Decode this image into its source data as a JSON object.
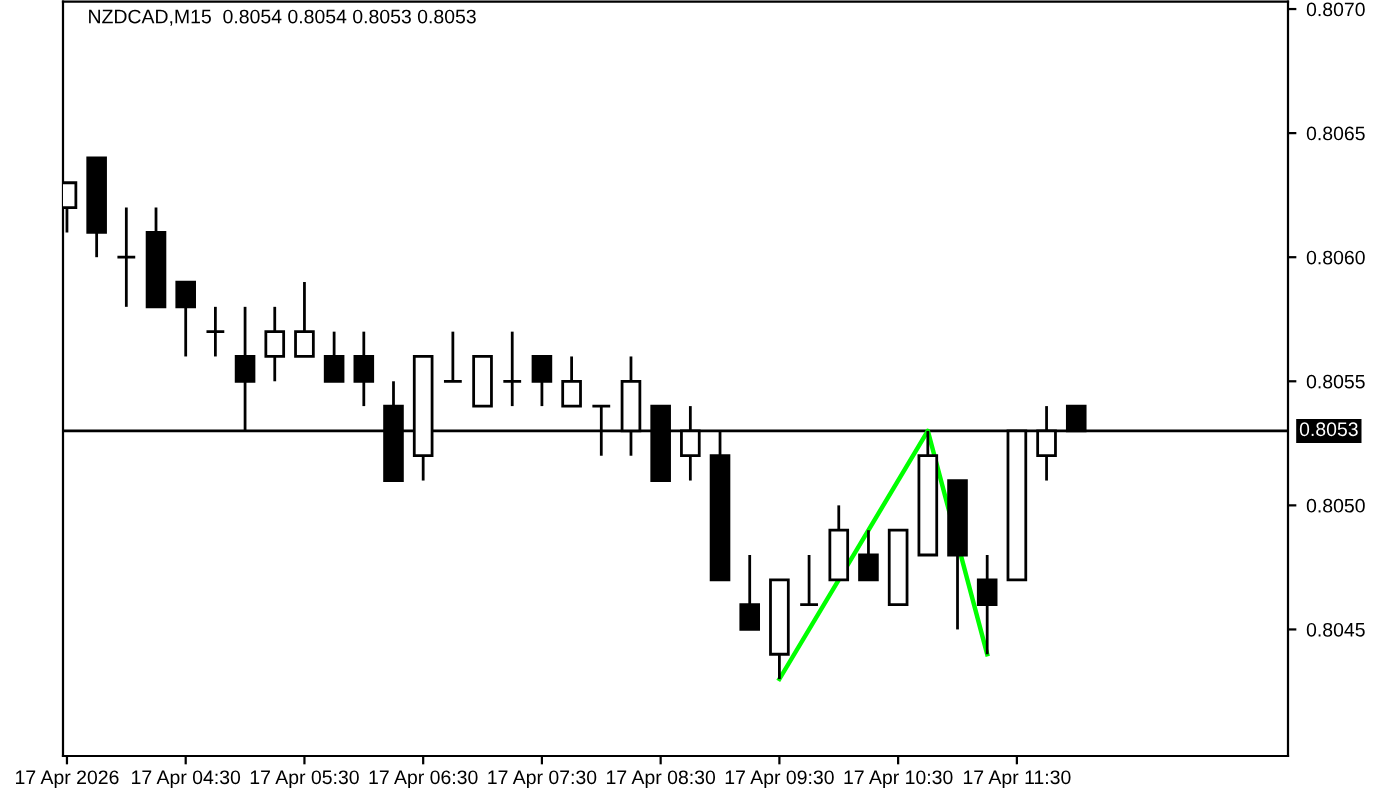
{
  "chart_data": {
    "type": "candlestick",
    "title": "NZDCAD,M15  0.8054 0.8054 0.8053 0.8053",
    "x": [
      "2026-04-17T03:30",
      "2026-04-17T03:45",
      "2026-04-17T04:00",
      "2026-04-17T04:15",
      "2026-04-17T04:30",
      "2026-04-17T04:45",
      "2026-04-17T05:00",
      "2026-04-17T05:15",
      "2026-04-17T05:30",
      "2026-04-17T05:45",
      "2026-04-17T06:00",
      "2026-04-17T06:15",
      "2026-04-17T06:30",
      "2026-04-17T06:45",
      "2026-04-17T07:00",
      "2026-04-17T07:15",
      "2026-04-17T07:30",
      "2026-04-17T07:45",
      "2026-04-17T08:00",
      "2026-04-17T08:15",
      "2026-04-17T08:30",
      "2026-04-17T08:45",
      "2026-04-17T09:00",
      "2026-04-17T09:15",
      "2026-04-17T09:30",
      "2026-04-17T09:45",
      "2026-04-17T10:00",
      "2026-04-17T10:15",
      "2026-04-17T10:30",
      "2026-04-17T10:45",
      "2026-04-17T11:00",
      "2026-04-17T11:15",
      "2026-04-17T11:30",
      "2026-04-17T11:45",
      "2026-04-17T12:00"
    ],
    "ohlc": [
      [
        0.8062,
        0.8063,
        0.8061,
        0.8063
      ],
      [
        0.8064,
        0.8064,
        0.806,
        0.8061
      ],
      [
        0.806,
        0.8062,
        0.8058,
        0.806
      ],
      [
        0.8061,
        0.8062,
        0.8058,
        0.8058
      ],
      [
        0.8059,
        0.8059,
        0.8056,
        0.8058
      ],
      [
        0.8057,
        0.8058,
        0.8056,
        0.8057
      ],
      [
        0.8056,
        0.8058,
        0.8053,
        0.8055
      ],
      [
        0.8056,
        0.8058,
        0.8055,
        0.8057
      ],
      [
        0.8056,
        0.8059,
        0.8056,
        0.8057
      ],
      [
        0.8056,
        0.8057,
        0.8055,
        0.8055
      ],
      [
        0.8056,
        0.8057,
        0.8054,
        0.8055
      ],
      [
        0.8054,
        0.8055,
        0.8051,
        0.8051
      ],
      [
        0.8052,
        0.8056,
        0.8051,
        0.8056
      ],
      [
        0.8055,
        0.8057,
        0.8055,
        0.8055
      ],
      [
        0.8054,
        0.8056,
        0.8054,
        0.8056
      ],
      [
        0.8055,
        0.8057,
        0.8054,
        0.8055
      ],
      [
        0.8056,
        0.8056,
        0.8054,
        0.8055
      ],
      [
        0.8054,
        0.8056,
        0.8054,
        0.8055
      ],
      [
        0.8054,
        0.8054,
        0.8052,
        0.8054
      ],
      [
        0.8053,
        0.8056,
        0.8052,
        0.8055
      ],
      [
        0.8054,
        0.8054,
        0.8051,
        0.8051
      ],
      [
        0.8052,
        0.8054,
        0.8051,
        0.8053
      ],
      [
        0.8052,
        0.8053,
        0.8047,
        0.8047
      ],
      [
        0.8046,
        0.8048,
        0.8045,
        0.8045
      ],
      [
        0.8044,
        0.8047,
        0.8043,
        0.8047
      ],
      [
        0.8046,
        0.8048,
        0.8046,
        0.8046
      ],
      [
        0.8047,
        0.805,
        0.8047,
        0.8049
      ],
      [
        0.8048,
        0.8049,
        0.8047,
        0.8047
      ],
      [
        0.8046,
        0.8049,
        0.8046,
        0.8049
      ],
      [
        0.8048,
        0.8053,
        0.8048,
        0.8052
      ],
      [
        0.8051,
        0.8051,
        0.8045,
        0.8048
      ],
      [
        0.8047,
        0.8048,
        0.8044,
        0.8046
      ],
      [
        0.8047,
        0.8053,
        0.8047,
        0.8053
      ],
      [
        0.8052,
        0.8054,
        0.8051,
        0.8053
      ],
      [
        0.8054,
        0.8054,
        0.8053,
        0.8053
      ]
    ],
    "colors": [
      "#ffffff",
      "#000000",
      "#000000",
      "#000000",
      "#000000",
      "#000000",
      "#000000",
      "#ffffff",
      "#ffffff",
      "#000000",
      "#000000",
      "#000000",
      "#ffffff",
      "#000000",
      "#ffffff",
      "#000000",
      "#000000",
      "#ffffff",
      "#000000",
      "#ffffff",
      "#000000",
      "#ffffff",
      "#000000",
      "#000000",
      "#ffffff",
      "#000000",
      "#ffffff",
      "#000000",
      "#ffffff",
      "#ffffff",
      "#000000",
      "#000000",
      "#ffffff",
      "#ffffff",
      "#000000"
    ],
    "series": [
      {
        "type": "line",
        "color": "#00ff00",
        "x": [
          "2026-04-17T09:30",
          "2026-04-17T10:45",
          "2026-04-17T11:15"
        ],
        "values": [
          0.8043,
          0.8053,
          0.8044
        ]
      }
    ],
    "ref_lines": [
      {
        "axis": "y",
        "value": 0.8053,
        "label": "0.8053",
        "color": "#000000"
      }
    ],
    "xlim": [
      "2026-04-17T03:28",
      "2026-04-17T13:47"
    ],
    "xticks": [
      {
        "value": "2026-04-17T03:30",
        "label": "17 Apr 2026"
      },
      {
        "value": "2026-04-17T04:30",
        "label": "17 Apr 04:30"
      },
      {
        "value": "2026-04-17T05:30",
        "label": "17 Apr 05:30"
      },
      {
        "value": "2026-04-17T06:30",
        "label": "17 Apr 06:30"
      },
      {
        "value": "2026-04-17T07:30",
        "label": "17 Apr 07:30"
      },
      {
        "value": "2026-04-17T08:30",
        "label": "17 Apr 08:30"
      },
      {
        "value": "2026-04-17T09:30",
        "label": "17 Apr 09:30"
      },
      {
        "value": "2026-04-17T10:30",
        "label": "17 Apr 10:30"
      },
      {
        "value": "2026-04-17T11:30",
        "label": "17 Apr 11:30"
      }
    ],
    "ylim": [
      0.80399,
      0.80703
    ],
    "yticks": [
      {
        "value": 0.8045,
        "label": "0.8045"
      },
      {
        "value": 0.805,
        "label": "0.8050"
      },
      {
        "value": 0.8055,
        "label": "0.8055"
      },
      {
        "value": 0.806,
        "label": "0.8060"
      },
      {
        "value": 0.8065,
        "label": "0.8065"
      },
      {
        "value": 0.807,
        "label": "0.8070"
      }
    ],
    "grid": false
  }
}
